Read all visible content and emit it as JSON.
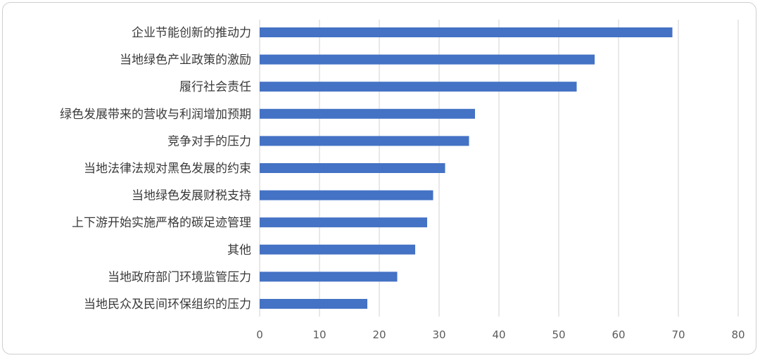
{
  "chart_data": {
    "type": "bar",
    "orientation": "horizontal",
    "title": "",
    "xlabel": "",
    "ylabel": "",
    "xlim": [
      0,
      80
    ],
    "x_ticks": [
      0,
      10,
      20,
      30,
      40,
      50,
      60,
      70,
      80
    ],
    "grid": true,
    "bar_color": "#4472C4",
    "categories": [
      "企业节能创新的推动力",
      "当地绿色产业政策的激励",
      "履行社会责任",
      "绿色发展带来的营收与利润增加预期",
      "竞争对手的压力",
      "当地法律法规对黑色发展的约束",
      "当地绿色发展财税支持",
      "上下游开始实施严格的碳足迹管理",
      "其他",
      "当地政府部门环境监管压力",
      "当地民众及民间环保组织的压力"
    ],
    "values": [
      69,
      56,
      53,
      36,
      35,
      31,
      29,
      28,
      26,
      23,
      18
    ]
  }
}
